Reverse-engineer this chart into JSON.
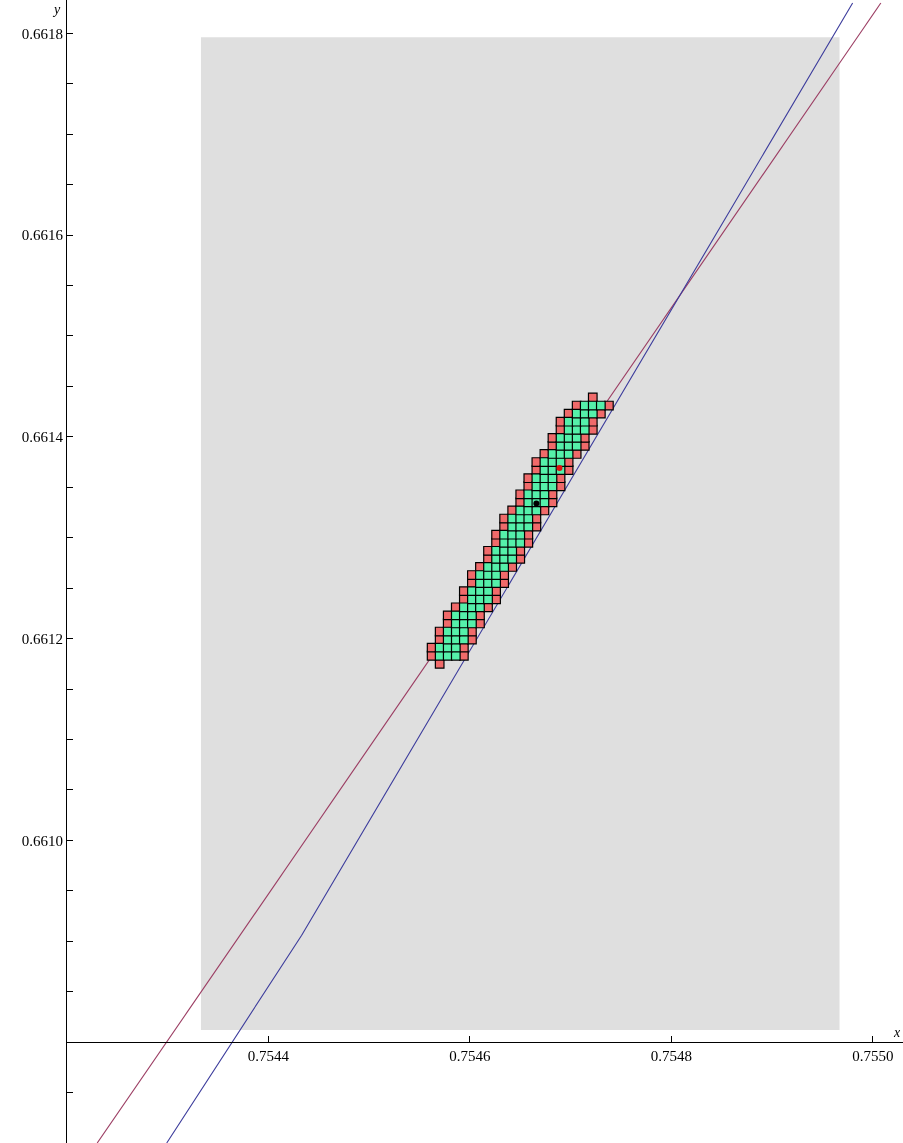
{
  "chart_data": {
    "type": "scatter",
    "xlabel": "x",
    "ylabel": "y",
    "xlim": [
      0.7542,
      0.75503
    ],
    "ylim": [
      0.6607,
      0.661833
    ],
    "xticks": [
      0.7544,
      0.7546,
      0.7548,
      {
        "value": 0.755,
        "label": "0.7550"
      }
    ],
    "yticks": [
      {
        "value": 0.6608,
        "label": null
      },
      {
        "value": 0.66075,
        "label": null
      },
      {
        "value": 0.66085,
        "label": null
      },
      {
        "value": 0.6609,
        "label": null
      },
      {
        "value": 0.66095,
        "label": null
      },
      {
        "value": 0.661,
        "label": "0.6610"
      },
      {
        "value": 0.66105,
        "label": null
      },
      {
        "value": 0.6611,
        "label": null
      },
      {
        "value": 0.66115,
        "label": null
      },
      0.6612,
      {
        "value": 0.66125,
        "label": null
      },
      {
        "value": 0.6613,
        "label": null
      },
      {
        "value": 0.66135,
        "label": null
      },
      0.6614,
      {
        "value": 0.66145,
        "label": null
      },
      {
        "value": 0.6615,
        "label": null
      },
      {
        "value": 0.66155,
        "label": null
      },
      0.6616,
      {
        "value": 0.66165,
        "label": null
      },
      {
        "value": 0.6617,
        "label": null
      },
      {
        "value": 0.66175,
        "label": null
      },
      0.6618
    ],
    "series": [
      {
        "type": "area",
        "color": "#dfdfdf",
        "x": [
          0.754333,
          0.754333,
          0.754967,
          0.754967,
          0.754333
        ],
        "values": [
          0.660812,
          0.661796,
          0.661796,
          0.660812,
          0.660812
        ]
      },
      {
        "type": "line",
        "color": "#9b3c62",
        "x": [
          0.75423,
          0.755008
        ],
        "values": [
          0.6607,
          0.66183
        ]
      },
      {
        "type": "line",
        "color": "#3c3c9c",
        "x": [
          0.754299,
          0.754433,
          0.75498
        ],
        "values": [
          0.6607,
          0.660906,
          0.66183
        ]
      },
      {
        "type": "scatter",
        "marker": "square",
        "color": "#f06a6a",
        "x": [
          0.75457,
          0.754562,
          0.754594,
          0.754562,
          0.754594,
          0.75457,
          0.754602,
          0.75457,
          0.754602,
          0.754578,
          0.75461,
          0.754578,
          0.75461,
          0.754586,
          0.754618,
          0.754594,
          0.754626,
          0.754594,
          0.754626,
          0.754602,
          0.754634,
          0.754602,
          0.754634,
          0.75461,
          0.754642,
          0.754618,
          0.75465,
          0.754618,
          0.75465,
          0.754626,
          0.754658,
          0.754626,
          0.754658,
          0.754634,
          0.754666,
          0.754634,
          0.754666,
          0.754642,
          0.754674,
          0.75465,
          0.754682,
          0.75465,
          0.754682,
          0.754658,
          0.75469,
          0.754658,
          0.75469,
          0.754666,
          0.754698,
          0.754666,
          0.754698,
          0.754674,
          0.754706,
          0.754682,
          0.754714,
          0.754682,
          0.754714,
          0.75469,
          0.754722,
          0.75469,
          0.754722,
          0.754698,
          0.75473,
          0.754706,
          0.754738,
          0.754722
        ],
        "values": [
          0.661175,
          0.661183,
          0.661183,
          0.661191,
          0.661191,
          0.661199,
          0.661199,
          0.661207,
          0.661207,
          0.661215,
          0.661215,
          0.661223,
          0.661223,
          0.661231,
          0.661231,
          0.661239,
          0.661239,
          0.661247,
          0.661247,
          0.661255,
          0.661255,
          0.661263,
          0.661263,
          0.661271,
          0.661271,
          0.661279,
          0.661279,
          0.661287,
          0.661287,
          0.661295,
          0.661295,
          0.661303,
          0.661303,
          0.661311,
          0.661311,
          0.661319,
          0.661319,
          0.661327,
          0.661327,
          0.661335,
          0.661335,
          0.661343,
          0.661343,
          0.661351,
          0.661351,
          0.661359,
          0.661359,
          0.661367,
          0.661367,
          0.661375,
          0.661375,
          0.661383,
          0.661383,
          0.661391,
          0.661391,
          0.661399,
          0.661399,
          0.661407,
          0.661407,
          0.661415,
          0.661415,
          0.661423,
          0.661423,
          0.661431,
          0.661431,
          0.661439
        ]
      },
      {
        "type": "scatter",
        "marker": "square",
        "color": "#55f0aa",
        "x": [
          0.75457,
          0.754578,
          0.754586,
          0.75457,
          0.754578,
          0.754586,
          0.754578,
          0.754586,
          0.754594,
          0.754578,
          0.754586,
          0.754594,
          0.754586,
          0.754594,
          0.754602,
          0.754586,
          0.754594,
          0.754602,
          0.754594,
          0.754602,
          0.75461,
          0.754602,
          0.75461,
          0.754618,
          0.754602,
          0.75461,
          0.754618,
          0.75461,
          0.754618,
          0.754626,
          0.75461,
          0.754618,
          0.754626,
          0.754618,
          0.754626,
          0.754634,
          0.754626,
          0.754634,
          0.754642,
          0.754626,
          0.754634,
          0.754642,
          0.754634,
          0.754642,
          0.75465,
          0.754634,
          0.754642,
          0.75465,
          0.754642,
          0.75465,
          0.754658,
          0.754642,
          0.75465,
          0.754658,
          0.75465,
          0.754658,
          0.754666,
          0.754658,
          0.754666,
          0.754674,
          0.754658,
          0.754666,
          0.754674,
          0.754666,
          0.754674,
          0.754682,
          0.754666,
          0.754674,
          0.754682,
          0.754674,
          0.754682,
          0.75469,
          0.754674,
          0.754682,
          0.75469,
          0.754682,
          0.75469,
          0.754698,
          0.75469,
          0.754698,
          0.754706,
          0.75469,
          0.754698,
          0.754706,
          0.754698,
          0.754706,
          0.754714,
          0.754698,
          0.754706,
          0.754714,
          0.754706,
          0.754714,
          0.754722,
          0.754714,
          0.754722,
          0.75473
        ],
        "values": [
          0.661183,
          0.661183,
          0.661183,
          0.661191,
          0.661191,
          0.661191,
          0.661199,
          0.661199,
          0.661199,
          0.661207,
          0.661207,
          0.661207,
          0.661215,
          0.661215,
          0.661215,
          0.661223,
          0.661223,
          0.661223,
          0.661231,
          0.661231,
          0.661231,
          0.661239,
          0.661239,
          0.661239,
          0.661247,
          0.661247,
          0.661247,
          0.661255,
          0.661255,
          0.661255,
          0.661263,
          0.661263,
          0.661263,
          0.661271,
          0.661271,
          0.661271,
          0.661279,
          0.661279,
          0.661279,
          0.661287,
          0.661287,
          0.661287,
          0.661295,
          0.661295,
          0.661295,
          0.661303,
          0.661303,
          0.661303,
          0.661311,
          0.661311,
          0.661311,
          0.661319,
          0.661319,
          0.661319,
          0.661327,
          0.661327,
          0.661327,
          0.661335,
          0.661335,
          0.661335,
          0.661343,
          0.661343,
          0.661343,
          0.661351,
          0.661351,
          0.661351,
          0.661359,
          0.661359,
          0.661359,
          0.661367,
          0.661367,
          0.661367,
          0.661375,
          0.661375,
          0.661375,
          0.661383,
          0.661383,
          0.661383,
          0.661391,
          0.661391,
          0.661391,
          0.661399,
          0.661399,
          0.661399,
          0.661407,
          0.661407,
          0.661407,
          0.661415,
          0.661415,
          0.661415,
          0.661423,
          0.661423,
          0.661423,
          0.661431,
          0.661431,
          0.661431
        ]
      },
      {
        "type": "scatter",
        "marker": "circle",
        "color": "#000000",
        "x": [
          0.754666
        ],
        "values": [
          0.661334
        ]
      },
      {
        "type": "scatter",
        "marker": "circle",
        "color": "#e01010",
        "x": [
          0.754689
        ],
        "values": [
          0.661369
        ]
      }
    ]
  }
}
